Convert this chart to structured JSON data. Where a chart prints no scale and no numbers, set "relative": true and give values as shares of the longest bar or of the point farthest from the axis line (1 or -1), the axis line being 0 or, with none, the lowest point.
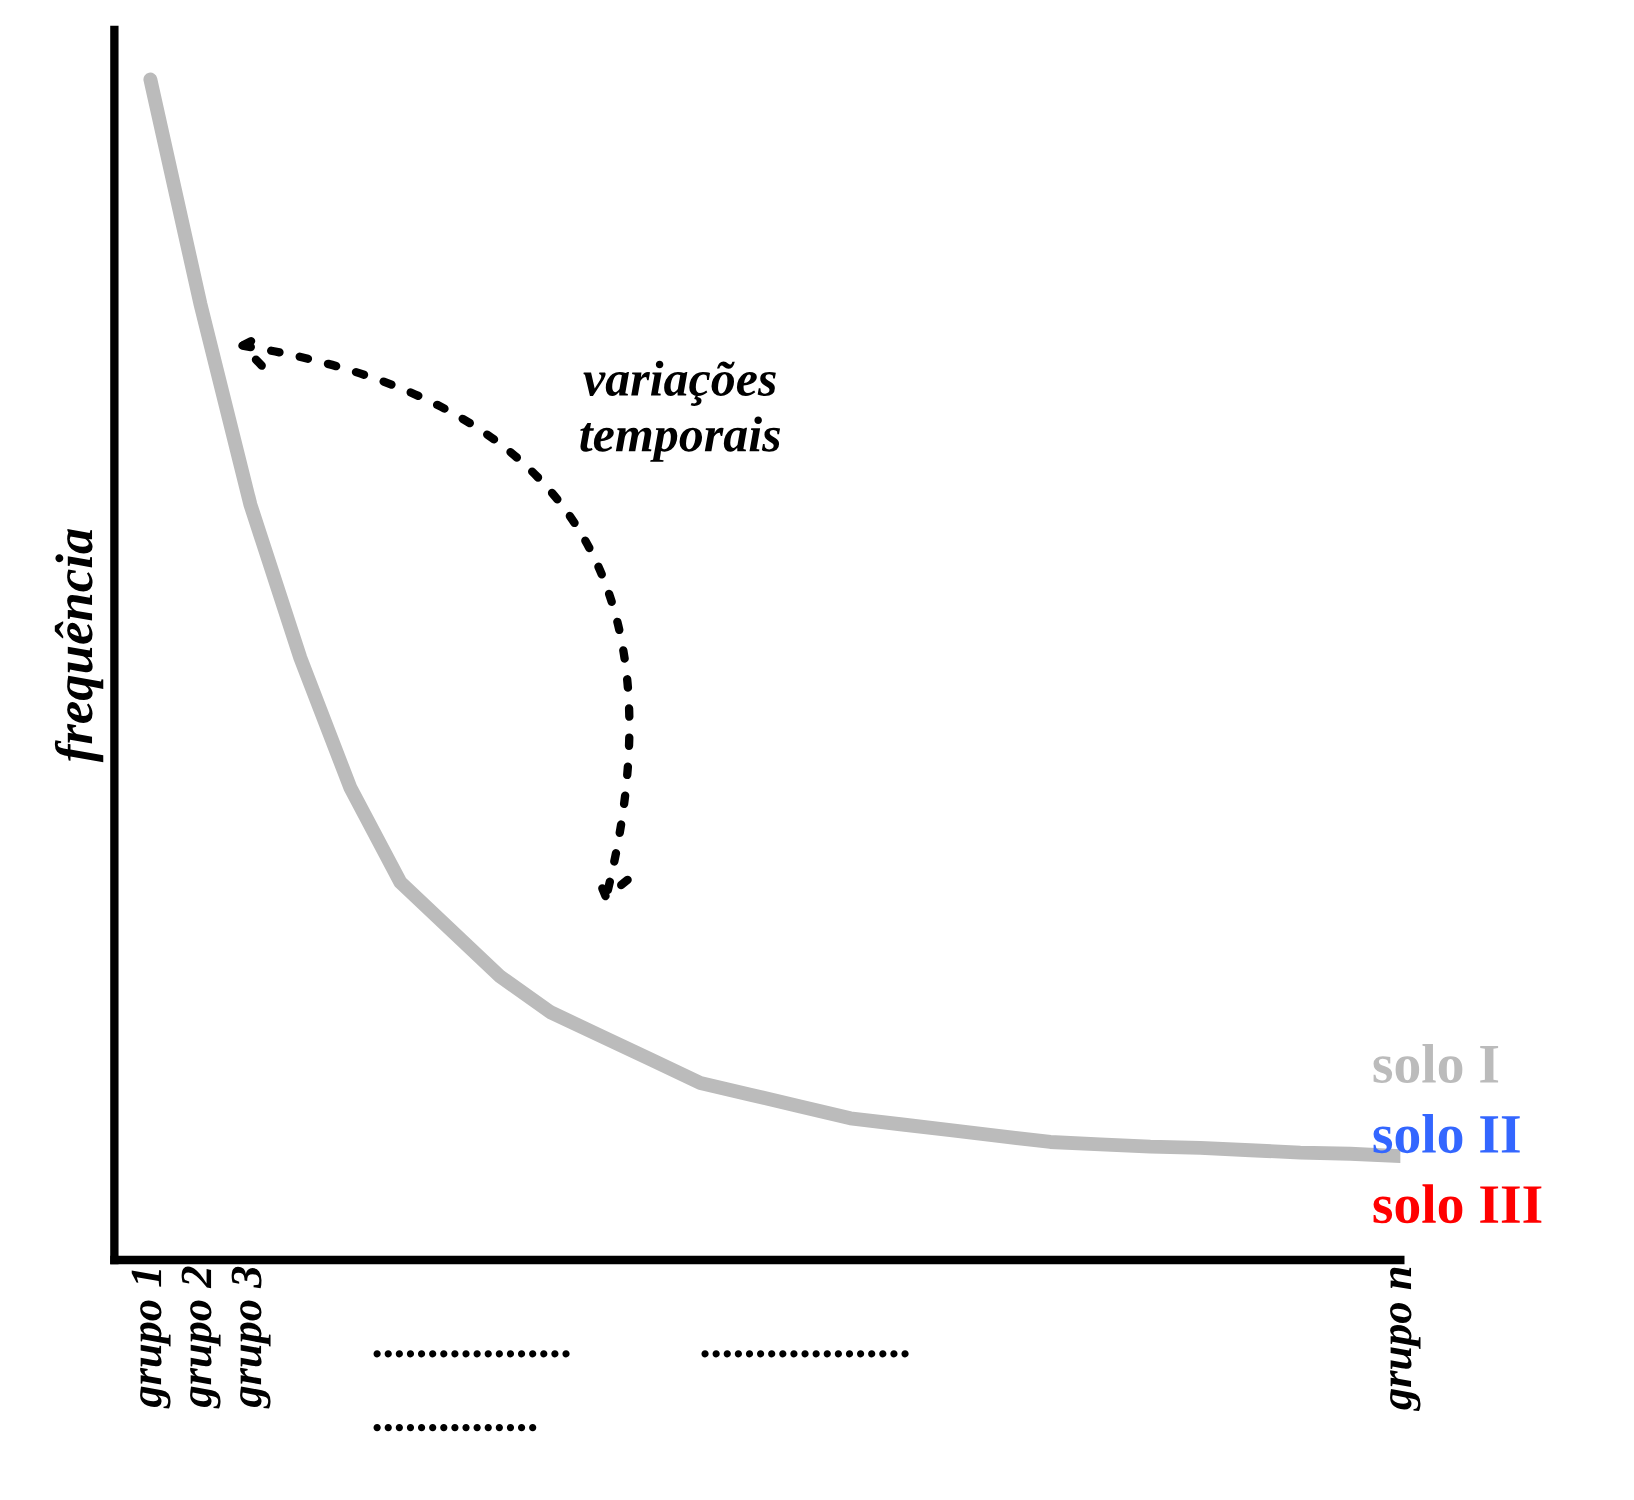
{
  "chart_data": {
    "type": "line",
    "relative": true,
    "ylabel": "frequência",
    "categories": [
      "grupo 1",
      "grupo 2",
      "grupo 3",
      null,
      null,
      null,
      null,
      null,
      null,
      null,
      null,
      null,
      null,
      null,
      null,
      null,
      null,
      null,
      null,
      null,
      null,
      null,
      null,
      null,
      null,
      "grupo n"
    ],
    "series": [
      {
        "name": "solo I",
        "color": "#bbbbbb",
        "values": [
          1.0,
          0.81,
          0.64,
          0.51,
          0.4,
          0.32,
          0.28,
          0.24,
          0.21,
          0.19,
          0.17,
          0.15,
          0.14,
          0.13,
          0.12,
          0.115,
          0.11,
          0.105,
          0.1,
          0.098,
          0.096,
          0.095,
          0.093,
          0.091,
          0.09,
          0.088
        ]
      },
      {
        "name": "solo II",
        "color": "#3366ff",
        "values": [
          null,
          null,
          null,
          null,
          null,
          null,
          null,
          null,
          null,
          null,
          null,
          null,
          null,
          null,
          null,
          null,
          null,
          null,
          null,
          null,
          null,
          null,
          null,
          null,
          null,
          null
        ]
      },
      {
        "name": "solo III",
        "color": "#ff0000",
        "values": [
          null,
          null,
          null,
          null,
          null,
          null,
          null,
          null,
          null,
          null,
          null,
          null,
          null,
          null,
          null,
          null,
          null,
          null,
          null,
          null,
          null,
          null,
          null,
          null,
          null,
          null
        ]
      }
    ],
    "annotations": [
      "variações\ntemporais",
      "..................",
      "...................",
      "..............."
    ],
    "legend": "bottom right",
    "tick_labels": "x",
    "grid": false,
    "marker": "none",
    "line_style": "solid"
  }
}
